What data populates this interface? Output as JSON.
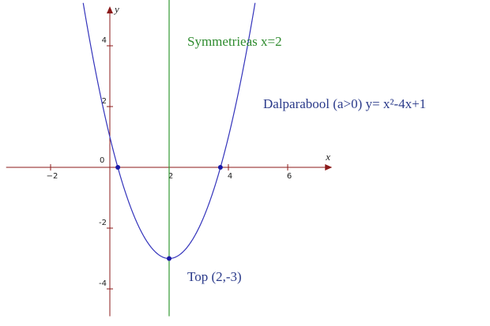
{
  "chart_data": {
    "type": "line",
    "title": "",
    "xlabel": "x",
    "ylabel": "y",
    "xlim": [
      -3.5,
      7.5
    ],
    "ylim": [
      -4.9,
      5.3
    ],
    "x_ticks": [
      -2,
      2,
      4,
      6
    ],
    "x_tick_labels": [
      "−2",
      "2",
      "4",
      "6"
    ],
    "y_ticks": [
      -4,
      -2,
      2,
      4
    ],
    "y_tick_labels": [
      "-4",
      "-2",
      "2",
      "4"
    ],
    "origin_label": "0",
    "grid": false,
    "series": [
      {
        "function": "x^2-4x+1",
        "x_range": [
          -0.9,
          4.9
        ],
        "color": "#3333bb"
      }
    ],
    "vertical_lines": [
      {
        "x": 2,
        "color": "#339933"
      }
    ],
    "points": [
      {
        "x": 0.27,
        "y": 0,
        "color": "#1a1aa8"
      },
      {
        "x": 3.73,
        "y": 0,
        "color": "#1a1aa8"
      },
      {
        "x": 2,
        "y": -3,
        "color": "#1a1aa8"
      }
    ],
    "annotations": [
      {
        "text": "Symmetrieas x=2",
        "color": "#2e8b2e"
      },
      {
        "text": "Dalparabool (a>0)  y= x²-4x+1",
        "color": "#2a3a8a"
      },
      {
        "text": "Top (2,-3)",
        "color": "#2a3a8a"
      }
    ],
    "axis_color": "#8b1a1a"
  }
}
